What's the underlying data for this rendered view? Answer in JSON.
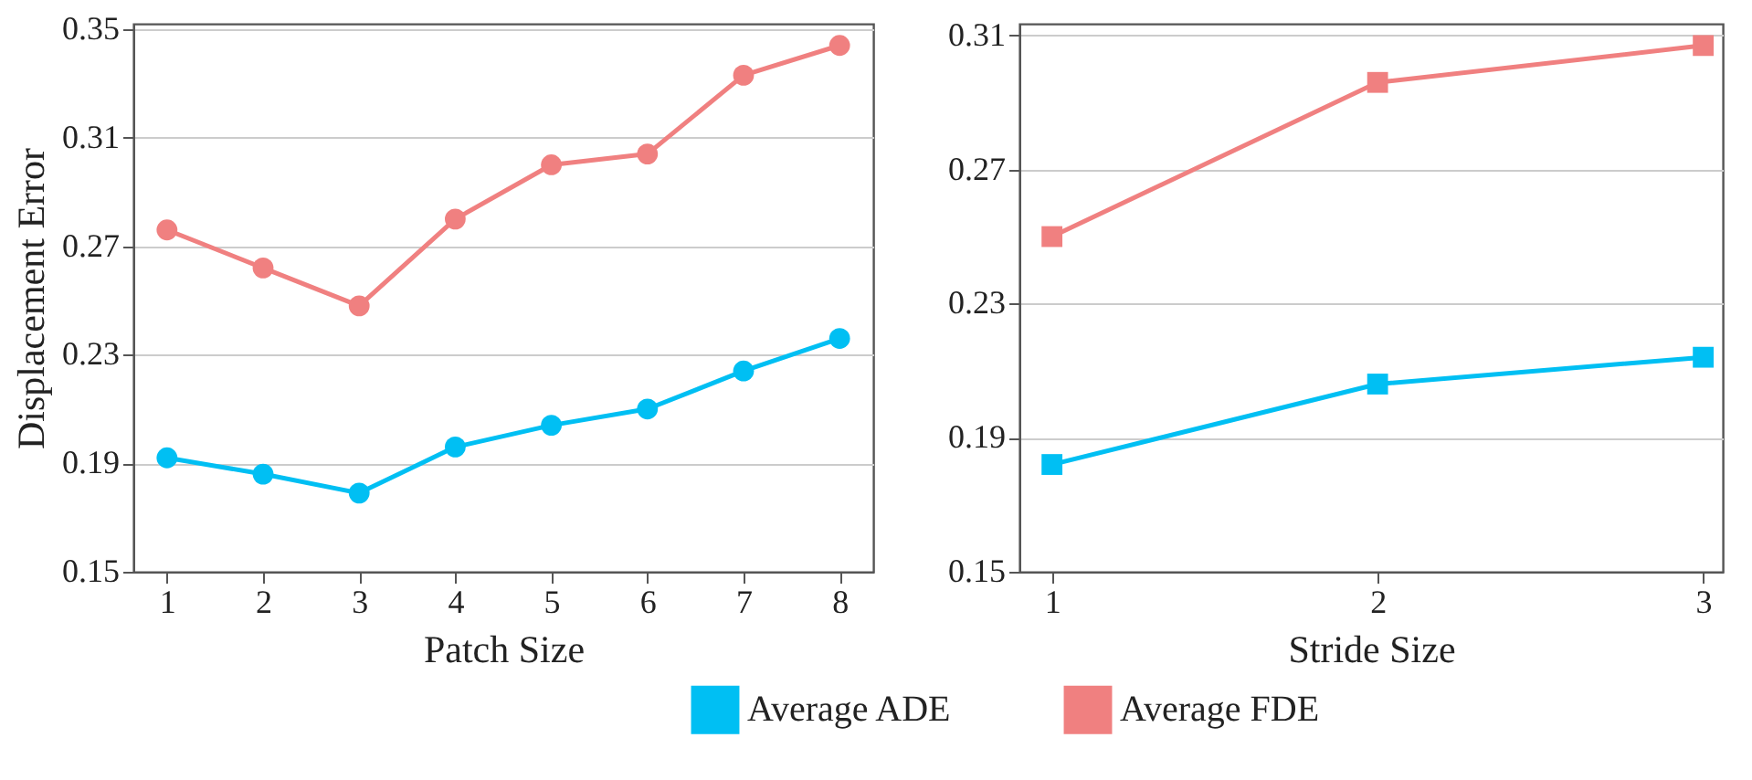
{
  "chart_data": [
    {
      "type": "line",
      "xlabel": "Patch Size",
      "ylabel": "Displacement Error",
      "x": [
        1,
        2,
        3,
        4,
        5,
        6,
        7,
        8
      ],
      "xlim": [
        0.65,
        8.35
      ],
      "xticks": [
        1,
        2,
        3,
        4,
        5,
        6,
        7,
        8
      ],
      "ylim": [
        0.15,
        0.352
      ],
      "yticks": [
        0.15,
        0.19,
        0.23,
        0.27,
        0.31,
        0.35
      ],
      "grid": "y",
      "marker": "circle",
      "legend": "bottom",
      "series": [
        {
          "name": "Average ADE",
          "color": "#00bff3",
          "values": [
            0.192,
            0.186,
            0.179,
            0.196,
            0.204,
            0.21,
            0.224,
            0.236
          ]
        },
        {
          "name": "Average FDE",
          "color": "#f08080",
          "values": [
            0.276,
            0.262,
            0.248,
            0.28,
            0.3,
            0.304,
            0.333,
            0.344
          ]
        }
      ]
    },
    {
      "type": "line",
      "xlabel": "Stride Size",
      "x": [
        1,
        2,
        3
      ],
      "xlim": [
        0.9,
        3.06
      ],
      "xticks": [
        1,
        2,
        3
      ],
      "ylim": [
        0.15,
        0.3135
      ],
      "yticks": [
        0.15,
        0.19,
        0.23,
        0.27,
        0.31
      ],
      "grid": "y",
      "marker": "square",
      "legend": "bottom",
      "series": [
        {
          "name": "Average ADE",
          "color": "#00bff3",
          "values": [
            0.182,
            0.206,
            0.214
          ]
        },
        {
          "name": "Average FDE",
          "color": "#f08080",
          "values": [
            0.25,
            0.296,
            0.307
          ]
        }
      ]
    }
  ]
}
